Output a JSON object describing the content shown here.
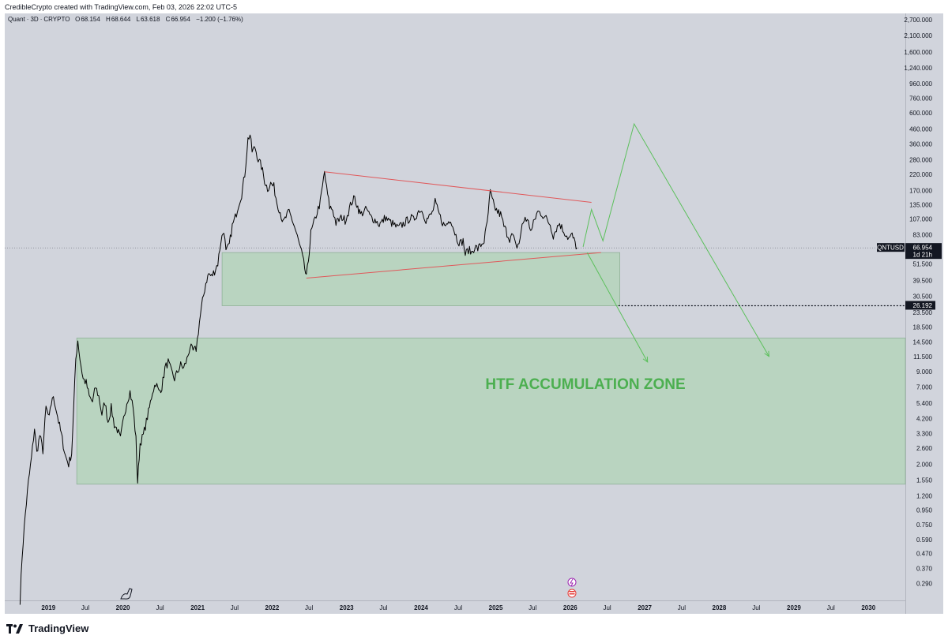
{
  "header": {
    "attribution": "CredibleCrypto created with TradingView.com, Feb 03, 2026 22:02 UTC-5"
  },
  "legend": {
    "symbol": "Quant",
    "interval": "3D",
    "exchange": "CRYPTO",
    "open_label": "O",
    "open": "68.154",
    "high_label": "H",
    "high": "68.644",
    "low_label": "L",
    "low": "63.618",
    "close_label": "C",
    "close": "66.954",
    "change": "−1.200 (−1.76%)"
  },
  "chart_data": {
    "type": "line",
    "y_scale": "log",
    "ylim": [
      0.22,
      3000
    ],
    "xlim": [
      "2018-06-01",
      "2030-07-01"
    ],
    "price_ticks": [
      "2,700.000",
      "2,100.000",
      "1,600.000",
      "1,240.000",
      "960.000",
      "760.000",
      "600.000",
      "460.000",
      "360.000",
      "280.000",
      "220.000",
      "170.000",
      "135.000",
      "107.000",
      "83.000",
      "51.500",
      "39.500",
      "30.500",
      "23.500",
      "18.500",
      "14.500",
      "11.500",
      "9.000",
      "7.000",
      "5.400",
      "4.200",
      "3.300",
      "2.600",
      "2.000",
      "1.550",
      "1.200",
      "0.950",
      "0.750",
      "0.590",
      "0.470",
      "0.370",
      "0.290"
    ],
    "price_tick_values": [
      2700,
      2100,
      1600,
      1240,
      960,
      760,
      600,
      460,
      360,
      280,
      220,
      170,
      135,
      107,
      83,
      51.5,
      39.5,
      30.5,
      23.5,
      18.5,
      14.5,
      11.5,
      9,
      7,
      5.4,
      4.2,
      3.3,
      2.6,
      2,
      1.55,
      1.2,
      0.95,
      0.75,
      0.59,
      0.47,
      0.37,
      0.29
    ],
    "time_ticks": [
      {
        "label": "2019",
        "date": "2019-01-01",
        "bold": true
      },
      {
        "label": "Jul",
        "date": "2019-07-01",
        "bold": false
      },
      {
        "label": "2020",
        "date": "2020-01-01",
        "bold": true
      },
      {
        "label": "Jul",
        "date": "2020-07-01",
        "bold": false
      },
      {
        "label": "2021",
        "date": "2021-01-01",
        "bold": true
      },
      {
        "label": "Jul",
        "date": "2021-07-01",
        "bold": false
      },
      {
        "label": "2022",
        "date": "2022-01-01",
        "bold": true
      },
      {
        "label": "Jul",
        "date": "2022-07-01",
        "bold": false
      },
      {
        "label": "2023",
        "date": "2023-01-01",
        "bold": true
      },
      {
        "label": "Jul",
        "date": "2023-07-01",
        "bold": false
      },
      {
        "label": "2024",
        "date": "2024-01-01",
        "bold": true
      },
      {
        "label": "Jul",
        "date": "2024-07-01",
        "bold": false
      },
      {
        "label": "2025",
        "date": "2025-01-01",
        "bold": true
      },
      {
        "label": "Jul",
        "date": "2025-07-01",
        "bold": false
      },
      {
        "label": "2026",
        "date": "2026-01-01",
        "bold": true
      },
      {
        "label": "Jul",
        "date": "2026-07-01",
        "bold": false
      },
      {
        "label": "2027",
        "date": "2027-01-01",
        "bold": true
      },
      {
        "label": "Jul",
        "date": "2027-07-01",
        "bold": false
      },
      {
        "label": "2028",
        "date": "2028-01-01",
        "bold": true
      },
      {
        "label": "Jul",
        "date": "2028-07-01",
        "bold": false
      },
      {
        "label": "2029",
        "date": "2029-01-01",
        "bold": true
      },
      {
        "label": "Jul",
        "date": "2029-07-01",
        "bold": false
      },
      {
        "label": "2030",
        "date": "2030-01-01",
        "bold": true
      }
    ],
    "series": [
      {
        "values": [
          [
            "2018-08-15",
            0.22
          ],
          [
            "2018-08-25",
            0.45
          ],
          [
            "2018-09-10",
            0.9
          ],
          [
            "2018-09-25",
            1.5
          ],
          [
            "2018-10-10",
            2.2
          ],
          [
            "2018-10-25",
            3.6
          ],
          [
            "2018-11-05",
            2.4
          ],
          [
            "2018-11-20",
            3.2
          ],
          [
            "2018-12-05",
            2.5
          ],
          [
            "2018-12-20",
            5.0
          ],
          [
            "2019-01-05",
            4.2
          ],
          [
            "2019-01-20",
            6.0
          ],
          [
            "2019-02-05",
            5.2
          ],
          [
            "2019-02-20",
            4.0
          ],
          [
            "2019-03-10",
            3.0
          ],
          [
            "2019-03-25",
            2.3
          ],
          [
            "2019-04-10",
            2.0
          ],
          [
            "2019-04-25",
            2.4
          ],
          [
            "2019-05-05",
            5.0
          ],
          [
            "2019-05-15",
            11.0
          ],
          [
            "2019-05-25",
            15.0
          ],
          [
            "2019-06-05",
            11.0
          ],
          [
            "2019-06-20",
            8.0
          ],
          [
            "2019-07-05",
            7.5
          ],
          [
            "2019-07-20",
            6.0
          ],
          [
            "2019-08-05",
            5.5
          ],
          [
            "2019-08-20",
            7.0
          ],
          [
            "2019-09-05",
            6.0
          ],
          [
            "2019-09-20",
            4.5
          ],
          [
            "2019-10-05",
            5.5
          ],
          [
            "2019-10-20",
            4.0
          ],
          [
            "2019-11-05",
            5.0
          ],
          [
            "2019-11-20",
            3.8
          ],
          [
            "2019-12-05",
            3.5
          ],
          [
            "2019-12-20",
            3.0
          ],
          [
            "2020-01-05",
            4.2
          ],
          [
            "2020-01-20",
            5.5
          ],
          [
            "2020-02-05",
            6.5
          ],
          [
            "2020-02-20",
            5.0
          ],
          [
            "2020-03-05",
            3.0
          ],
          [
            "2020-03-13",
            1.5
          ],
          [
            "2020-03-25",
            2.8
          ],
          [
            "2020-04-10",
            3.2
          ],
          [
            "2020-04-25",
            4.0
          ],
          [
            "2020-05-10",
            5.0
          ],
          [
            "2020-05-25",
            6.5
          ],
          [
            "2020-06-10",
            7.5
          ],
          [
            "2020-06-25",
            6.5
          ],
          [
            "2020-07-10",
            7.0
          ],
          [
            "2020-07-25",
            9.5
          ],
          [
            "2020-08-10",
            10.5
          ],
          [
            "2020-08-25",
            9.0
          ],
          [
            "2020-09-10",
            8.0
          ],
          [
            "2020-09-25",
            9.0
          ],
          [
            "2020-10-10",
            10.0
          ],
          [
            "2020-10-25",
            9.5
          ],
          [
            "2020-11-10",
            11.0
          ],
          [
            "2020-11-25",
            13.5
          ],
          [
            "2020-12-10",
            12.5
          ],
          [
            "2020-12-25",
            13.0
          ],
          [
            "2021-01-10",
            20.0
          ],
          [
            "2021-01-25",
            28.0
          ],
          [
            "2021-02-10",
            38.0
          ],
          [
            "2021-02-25",
            44.0
          ],
          [
            "2021-03-10",
            42.0
          ],
          [
            "2021-03-25",
            46.0
          ],
          [
            "2021-04-10",
            52.0
          ],
          [
            "2021-04-25",
            75.0
          ],
          [
            "2021-05-10",
            90.0
          ],
          [
            "2021-05-20",
            62.0
          ],
          [
            "2021-06-05",
            70.0
          ],
          [
            "2021-06-20",
            95.0
          ],
          [
            "2021-07-05",
            110.0
          ],
          [
            "2021-07-20",
            135.0
          ],
          [
            "2021-08-05",
            160.0
          ],
          [
            "2021-08-20",
            220.0
          ],
          [
            "2021-09-05",
            390.0
          ],
          [
            "2021-09-15",
            420.0
          ],
          [
            "2021-09-25",
            320.0
          ],
          [
            "2021-10-10",
            340.0
          ],
          [
            "2021-10-25",
            280.0
          ],
          [
            "2021-11-10",
            250.0
          ],
          [
            "2021-11-25",
            200.0
          ],
          [
            "2021-12-10",
            175.0
          ],
          [
            "2021-12-25",
            190.0
          ],
          [
            "2022-01-10",
            180.0
          ],
          [
            "2022-01-25",
            140.0
          ],
          [
            "2022-02-10",
            120.0
          ],
          [
            "2022-02-25",
            100.0
          ],
          [
            "2022-03-10",
            110.0
          ],
          [
            "2022-03-25",
            120.0
          ],
          [
            "2022-04-10",
            105.0
          ],
          [
            "2022-04-25",
            90.0
          ],
          [
            "2022-05-10",
            75.0
          ],
          [
            "2022-05-25",
            62.0
          ],
          [
            "2022-06-10",
            48.0
          ],
          [
            "2022-06-18",
            41.0
          ],
          [
            "2022-06-28",
            55.0
          ],
          [
            "2022-07-10",
            85.0
          ],
          [
            "2022-07-25",
            100.0
          ],
          [
            "2022-08-10",
            120.0
          ],
          [
            "2022-08-25",
            140.0
          ],
          [
            "2022-09-05",
            180.0
          ],
          [
            "2022-09-15",
            230.0
          ],
          [
            "2022-09-25",
            175.0
          ],
          [
            "2022-10-10",
            130.0
          ],
          [
            "2022-10-25",
            125.0
          ],
          [
            "2022-11-10",
            100.0
          ],
          [
            "2022-11-25",
            105.0
          ],
          [
            "2022-12-10",
            110.0
          ],
          [
            "2022-12-25",
            105.0
          ],
          [
            "2023-01-10",
            120.0
          ],
          [
            "2023-01-25",
            140.0
          ],
          [
            "2023-02-10",
            150.0
          ],
          [
            "2023-02-25",
            130.0
          ],
          [
            "2023-03-10",
            115.0
          ],
          [
            "2023-03-25",
            120.0
          ],
          [
            "2023-04-10",
            125.0
          ],
          [
            "2023-04-25",
            112.0
          ],
          [
            "2023-05-10",
            108.0
          ],
          [
            "2023-05-25",
            104.0
          ],
          [
            "2023-06-10",
            98.0
          ],
          [
            "2023-06-25",
            102.0
          ],
          [
            "2023-07-10",
            110.0
          ],
          [
            "2023-07-25",
            104.0
          ],
          [
            "2023-08-10",
            100.0
          ],
          [
            "2023-08-25",
            96.0
          ],
          [
            "2023-09-10",
            92.0
          ],
          [
            "2023-09-25",
            96.0
          ],
          [
            "2023-10-10",
            100.0
          ],
          [
            "2023-10-25",
            104.0
          ],
          [
            "2023-11-10",
            110.0
          ],
          [
            "2023-11-25",
            105.0
          ],
          [
            "2023-12-10",
            115.0
          ],
          [
            "2023-12-25",
            125.0
          ],
          [
            "2024-01-10",
            120.0
          ],
          [
            "2024-01-25",
            105.0
          ],
          [
            "2024-02-10",
            110.0
          ],
          [
            "2024-02-25",
            118.0
          ],
          [
            "2024-03-10",
            140.0
          ],
          [
            "2024-03-25",
            120.0
          ],
          [
            "2024-04-10",
            105.0
          ],
          [
            "2024-04-25",
            95.0
          ],
          [
            "2024-05-10",
            100.0
          ],
          [
            "2024-05-25",
            108.0
          ],
          [
            "2024-06-10",
            90.0
          ],
          [
            "2024-06-25",
            78.0
          ],
          [
            "2024-07-10",
            72.0
          ],
          [
            "2024-07-25",
            75.0
          ],
          [
            "2024-08-05",
            60.0
          ],
          [
            "2024-08-20",
            65.0
          ],
          [
            "2024-09-05",
            62.0
          ],
          [
            "2024-09-20",
            68.0
          ],
          [
            "2024-10-05",
            66.0
          ],
          [
            "2024-10-20",
            70.0
          ],
          [
            "2024-11-05",
            75.0
          ],
          [
            "2024-11-20",
            100.0
          ],
          [
            "2024-12-05",
            165.0
          ],
          [
            "2024-12-15",
            145.0
          ],
          [
            "2024-12-25",
            130.0
          ],
          [
            "2025-01-10",
            120.0
          ],
          [
            "2025-01-25",
            115.0
          ],
          [
            "2025-02-10",
            95.0
          ],
          [
            "2025-02-25",
            85.0
          ],
          [
            "2025-03-10",
            78.0
          ],
          [
            "2025-03-25",
            82.0
          ],
          [
            "2025-04-10",
            68.0
          ],
          [
            "2025-04-25",
            72.0
          ],
          [
            "2025-05-10",
            95.0
          ],
          [
            "2025-05-25",
            110.0
          ],
          [
            "2025-06-10",
            100.0
          ],
          [
            "2025-06-25",
            88.0
          ],
          [
            "2025-07-10",
            105.0
          ],
          [
            "2025-07-25",
            120.0
          ],
          [
            "2025-08-10",
            118.0
          ],
          [
            "2025-08-25",
            112.0
          ],
          [
            "2025-09-10",
            105.0
          ],
          [
            "2025-09-25",
            98.0
          ],
          [
            "2025-10-10",
            82.0
          ],
          [
            "2025-10-25",
            92.0
          ],
          [
            "2025-11-10",
            100.0
          ],
          [
            "2025-11-25",
            90.0
          ],
          [
            "2025-12-10",
            84.0
          ],
          [
            "2025-12-25",
            78.0
          ],
          [
            "2026-01-10",
            82.0
          ],
          [
            "2026-01-25",
            72.0
          ],
          [
            "2026-02-03",
            66.954
          ]
        ]
      }
    ],
    "drawings": {
      "upper_trendline": [
        [
          "2022-09-15",
          230.0
        ],
        [
          "2026-04-15",
          140.0
        ]
      ],
      "lower_trendline": [
        [
          "2022-06-18",
          41.0
        ],
        [
          "2026-06-01",
          62.0
        ]
      ],
      "upper_zone": {
        "x0": "2021-05-01",
        "x1": "2026-09-01",
        "y0": 26.192,
        "y1": 62.0
      },
      "lower_zone": {
        "x0": "2019-05-20",
        "x1": "2030-07-01",
        "y0": 1.45,
        "y1": 15.5
      },
      "scenario_up_path": [
        [
          "2026-03-05",
          68.0
        ],
        [
          "2026-04-15",
          125.0
        ],
        [
          "2026-06-10",
          75.0
        ],
        [
          "2026-11-10",
          500.0
        ],
        [
          "2028-09-01",
          11.5
        ]
      ],
      "scenario_down_path": [
        [
          "2026-03-25",
          62.0
        ],
        [
          "2027-01-15",
          10.5
        ]
      ],
      "support_level": {
        "x0": "2026-08-25",
        "x1": "2030-07-01",
        "y": 26.192
      }
    },
    "annotation": "HTF ACCUMULATION ZONE",
    "price_tags": {
      "symbol": "QNTUSD",
      "last_price": "66.954",
      "countdown": "1d 21h",
      "level": "26.192"
    },
    "colors": {
      "background": "#d1d4dc",
      "price_line": "#000000",
      "trendline": "#e0585a",
      "zone_fill": "#b6d4bd",
      "zone_stroke": "#8fb198",
      "scenario": "#5cc05c",
      "annotation": "#4caf50",
      "tag_bg": "#131722"
    }
  },
  "footer": {
    "brand": "TradingView"
  }
}
